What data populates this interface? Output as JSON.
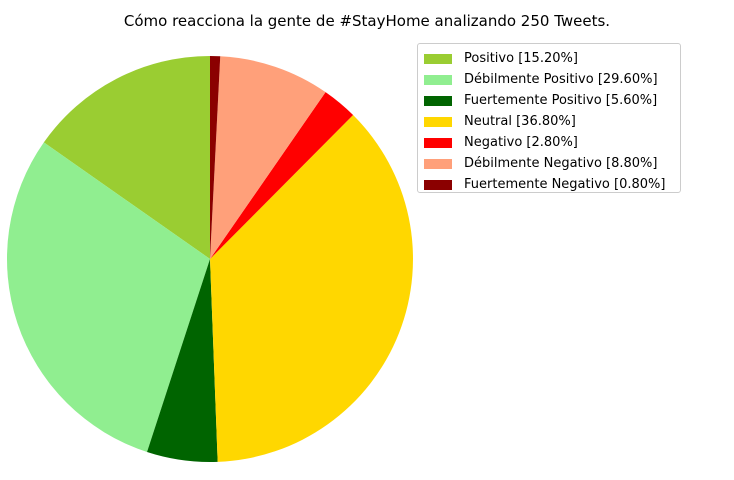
{
  "chart_data": {
    "type": "pie",
    "title": "Cómo reacciona la gente de #StayHome analizando 250 Tweets.",
    "start_angle_deg": 90,
    "direction": "counterclockwise",
    "legend_placement": "upper-right",
    "slices": [
      {
        "label": "Positivo [15.20%]",
        "value": 15.2,
        "color": "#9acd32"
      },
      {
        "label": "Débilmente Positivo [29.60%]",
        "value": 29.6,
        "color": "#90ee90"
      },
      {
        "label": "Fuertemente Positivo [5.60%]",
        "value": 5.6,
        "color": "#006400"
      },
      {
        "label": "Neutral [36.80%]",
        "value": 36.8,
        "color": "#ffd700"
      },
      {
        "label": "Negativo [2.80%]",
        "value": 2.8,
        "color": "#ff0000"
      },
      {
        "label": "Débilmente Negativo [8.80%]",
        "value": 8.8,
        "color": "#ffa07a"
      },
      {
        "label": "Fuertemente Negativo [0.80%]",
        "value": 0.8,
        "color": "#8b0000"
      }
    ]
  }
}
